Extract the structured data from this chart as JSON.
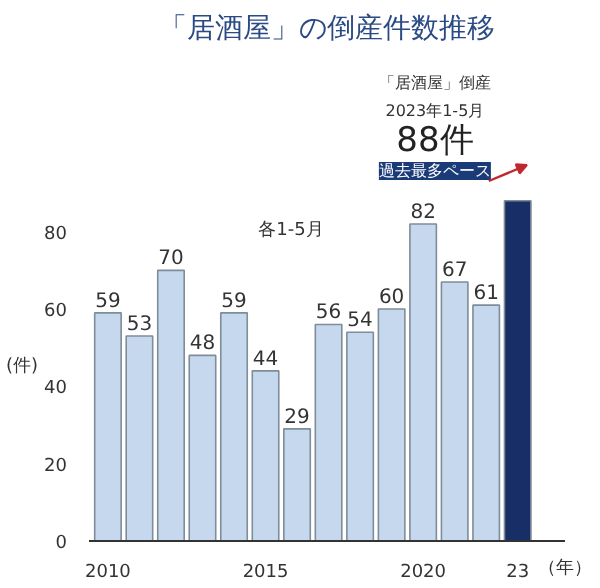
{
  "chart_data": {
    "type": "bar",
    "title": "「居酒屋」の倒産件数推移",
    "categories": [
      "2010",
      null,
      null,
      null,
      null,
      "2015",
      null,
      null,
      null,
      null,
      "2020",
      null,
      null,
      "23"
    ],
    "values": [
      59,
      53,
      70,
      48,
      59,
      44,
      29,
      56,
      54,
      60,
      82,
      67,
      61,
      88
    ],
    "colors": [
      "#c5d8ee",
      "#c5d8ee",
      "#c5d8ee",
      "#c5d8ee",
      "#c5d8ee",
      "#c5d8ee",
      "#c5d8ee",
      "#c5d8ee",
      "#c5d8ee",
      "#c5d8ee",
      "#c5d8ee",
      "#c5d8ee",
      "#c5d8ee",
      "#172f66"
    ],
    "value_labels": [
      "59",
      "53",
      "70",
      "48",
      "59",
      "44",
      "29",
      "56",
      "54",
      "60",
      "82",
      "67",
      "61",
      null
    ],
    "ylabel": "(件)",
    "xlabel": "（年）",
    "ylim": [
      0,
      90
    ],
    "yticks": [
      0,
      20,
      40,
      60,
      80
    ],
    "grid": false,
    "annotations": [
      "各1-5月",
      "「居酒屋」倒産",
      "2023年1-5月",
      "88件",
      "過去最多ペース"
    ]
  }
}
